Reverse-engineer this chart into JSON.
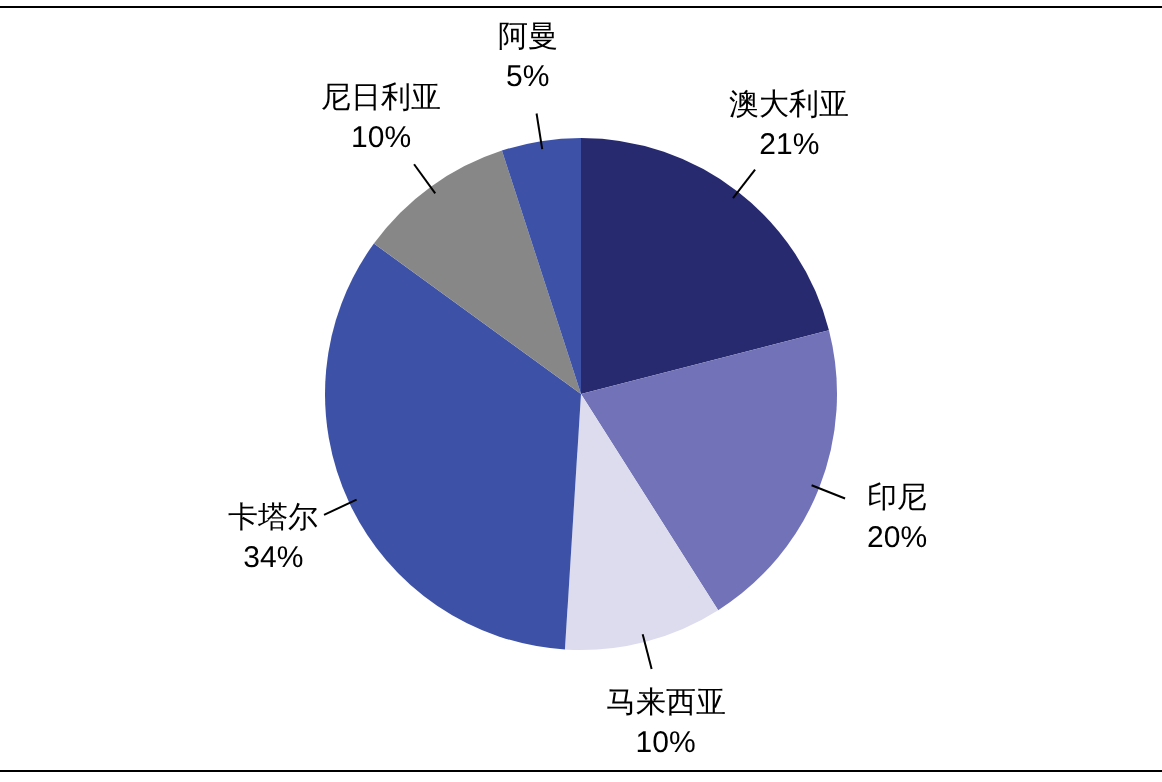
{
  "chart_data": {
    "type": "pie",
    "categories": [
      "澳大利亚",
      "印尼",
      "马来西亚",
      "卡塔尔",
      "尼日利亚",
      "阿曼"
    ],
    "values": [
      21,
      20,
      10,
      34,
      10,
      5
    ],
    "value_labels": [
      "21%",
      "20%",
      "10%",
      "34%",
      "10%",
      "5%"
    ],
    "colors": [
      "#272a6e",
      "#7272b8",
      "#dcdcee",
      "#3d52a6",
      "#878787",
      "#3d52a6"
    ],
    "legend": false
  }
}
